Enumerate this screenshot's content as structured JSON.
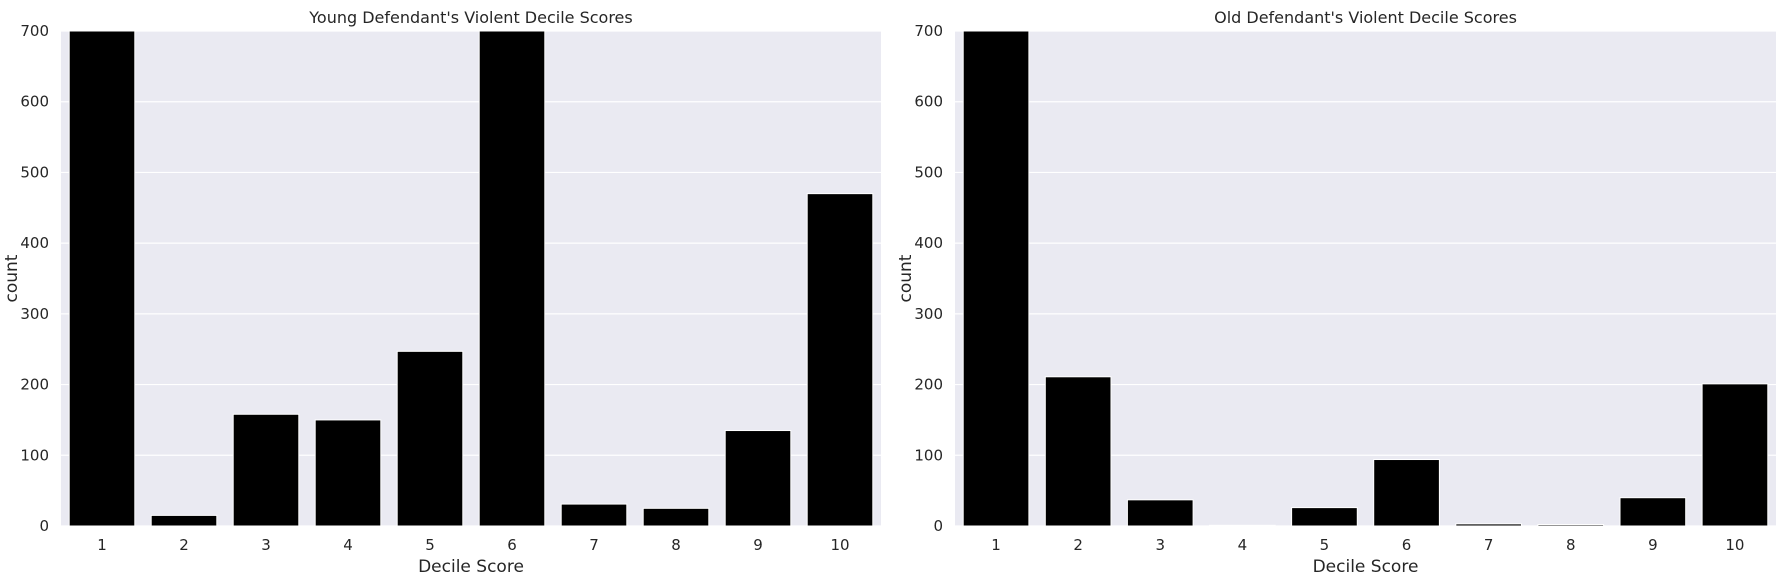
{
  "chart_data": [
    {
      "type": "bar",
      "title": "Young Defendant's Violent Decile Scores",
      "xlabel": "Decile Score",
      "ylabel": "count",
      "categories": [
        "1",
        "2",
        "3",
        "4",
        "5",
        "6",
        "7",
        "8",
        "9",
        "10"
      ],
      "values": [
        700,
        15,
        158,
        150,
        247,
        700,
        31,
        25,
        135,
        470
      ],
      "ylim": [
        0,
        700
      ],
      "yticks": [
        0,
        100,
        200,
        300,
        400,
        500,
        600,
        700
      ],
      "grid": true,
      "bar_color": "#000000",
      "background": "#EAEAF2"
    },
    {
      "type": "bar",
      "title": "Old Defendant's Violent Decile Scores",
      "xlabel": "Decile Score",
      "ylabel": "count",
      "categories": [
        "1",
        "2",
        "3",
        "4",
        "5",
        "6",
        "7",
        "8",
        "9",
        "10"
      ],
      "values": [
        700,
        211,
        37,
        1,
        26,
        94,
        3,
        2,
        40,
        201
      ],
      "ylim": [
        0,
        700
      ],
      "yticks": [
        0,
        100,
        200,
        300,
        400,
        500,
        600,
        700
      ],
      "grid": true,
      "bar_color": "#000000",
      "background": "#EAEAF2"
    }
  ]
}
